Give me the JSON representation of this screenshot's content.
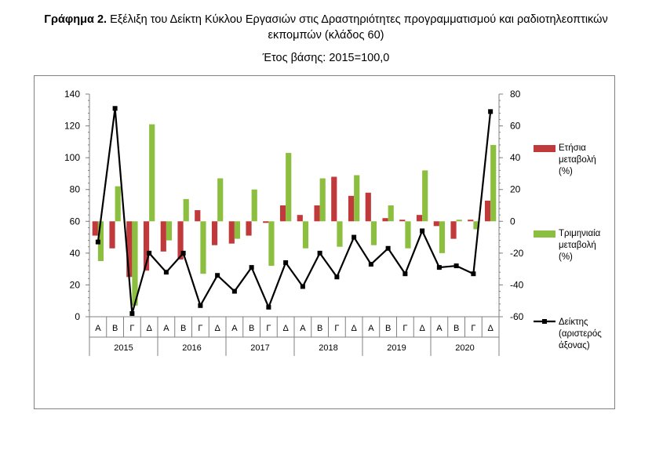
{
  "header": {
    "title_bold": "Γράφημα 2.",
    "title_line1": "Εξέλιξη του Δείκτη Κύκλου Εργασιών στις Δραστηριότητες προγραμματισμού και ραδιοτηλεοπτικών",
    "title_line2": "εκπομπών (κλάδος 60)",
    "base_year": "Έτος βάσης: 2015=100,0"
  },
  "colors": {
    "annual": "#c0393b",
    "quarterly": "#8cbf3f",
    "index": "#000000"
  },
  "chart_data": {
    "type": "bar+line",
    "title": "Εξέλιξη του Δείκτη Κύκλου Εργασιών στις Δραστηριότητες προγραμματισμού και ραδιοτηλεοπτικών εκπομπών (κλάδος 60)",
    "subtitle": "Έτος βάσης: 2015=100,0",
    "quarter_labels": [
      "Α",
      "Β",
      "Γ",
      "Δ",
      "Α",
      "Β",
      "Γ",
      "Δ",
      "Α",
      "Β",
      "Γ",
      "Δ",
      "Α",
      "Β",
      "Γ",
      "Δ",
      "Α",
      "Β",
      "Γ",
      "Δ",
      "Α",
      "Β",
      "Γ",
      "Δ"
    ],
    "years": [
      "2015",
      "2016",
      "2017",
      "2018",
      "2019",
      "2020"
    ],
    "left_axis": {
      "min": 0,
      "max": 140,
      "step": 20,
      "ticks": [
        "0",
        "20",
        "40",
        "60",
        "80",
        "100",
        "120",
        "140"
      ]
    },
    "right_axis": {
      "min": -60,
      "max": 80,
      "step": 20,
      "ticks": [
        "-60",
        "-40",
        "-20",
        "0",
        "20",
        "40",
        "60",
        "80"
      ]
    },
    "series": [
      {
        "name": "Ετήσια μεταβολή (%)",
        "axis": "right",
        "kind": "bar",
        "values": [
          -9,
          -17,
          -35,
          -31,
          -19,
          -24,
          7,
          -15,
          -14,
          -9,
          -1,
          10,
          4,
          10,
          28,
          16,
          18,
          2,
          1,
          4,
          -3,
          -11,
          1,
          13
        ]
      },
      {
        "name": "Τριμηνιαία μεταβολή (%)",
        "axis": "right",
        "kind": "bar",
        "values": [
          -25,
          22,
          -53,
          61,
          -12,
          14,
          -33,
          27,
          -11,
          20,
          -28,
          43,
          -17,
          27,
          -16,
          29,
          -15,
          10,
          -17,
          32,
          -20,
          1,
          -5,
          48
        ]
      },
      {
        "name": "Δείκτης (αριστερός άξονας)",
        "axis": "left",
        "kind": "line",
        "values": [
          47,
          131,
          2,
          40,
          28,
          40,
          7,
          26,
          16,
          31,
          6,
          34,
          19,
          40,
          25,
          50,
          33,
          43,
          27,
          54,
          31,
          32,
          27,
          129
        ]
      }
    ],
    "legend_position": "right"
  },
  "legend": {
    "annual": [
      "Ετήσια",
      "μεταβολή",
      "(%)"
    ],
    "quarterly": [
      "Τριμηνιαία",
      "μεταβολή",
      "(%)"
    ],
    "index": [
      "Δείκτης",
      "(αριστερός",
      "άξονας)"
    ]
  }
}
